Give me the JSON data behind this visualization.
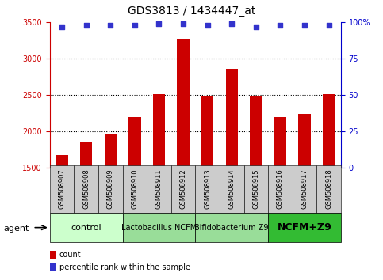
{
  "title": "GDS3813 / 1434447_at",
  "categories": [
    "GSM508907",
    "GSM508908",
    "GSM508909",
    "GSM508910",
    "GSM508911",
    "GSM508912",
    "GSM508913",
    "GSM508914",
    "GSM508915",
    "GSM508916",
    "GSM508917",
    "GSM508918"
  ],
  "bar_values": [
    1680,
    1860,
    1960,
    2200,
    2510,
    3280,
    2490,
    2860,
    2490,
    2200,
    2240,
    2520
  ],
  "percentile_values": [
    97,
    98,
    98,
    98,
    99,
    99,
    98,
    99,
    97,
    98,
    98,
    98
  ],
  "ylim_left": [
    1500,
    3500
  ],
  "ylim_right": [
    0,
    100
  ],
  "yticks_left": [
    1500,
    2000,
    2500,
    3000,
    3500
  ],
  "yticks_right": [
    0,
    25,
    50,
    75,
    100
  ],
  "bar_color": "#cc0000",
  "dot_color": "#3333cc",
  "left_axis_color": "#cc0000",
  "right_axis_color": "#0000cc",
  "label_box_color": "#cccccc",
  "groups": [
    {
      "label": "control",
      "start": 0,
      "end": 3,
      "color": "#ccffcc",
      "bold": false,
      "fontsize": 8
    },
    {
      "label": "Lactobacillus NCFM",
      "start": 3,
      "end": 6,
      "color": "#99dd99",
      "bold": false,
      "fontsize": 7
    },
    {
      "label": "Bifidobacterium Z9",
      "start": 6,
      "end": 9,
      "color": "#99dd99",
      "bold": false,
      "fontsize": 7
    },
    {
      "label": "NCFM+Z9",
      "start": 9,
      "end": 12,
      "color": "#33bb33",
      "bold": true,
      "fontsize": 9
    }
  ],
  "agent_label": "agent",
  "legend_count_label": "count",
  "legend_percentile_label": "percentile rank within the sample",
  "title_fontsize": 10,
  "tick_fontsize": 7,
  "cat_fontsize": 6
}
